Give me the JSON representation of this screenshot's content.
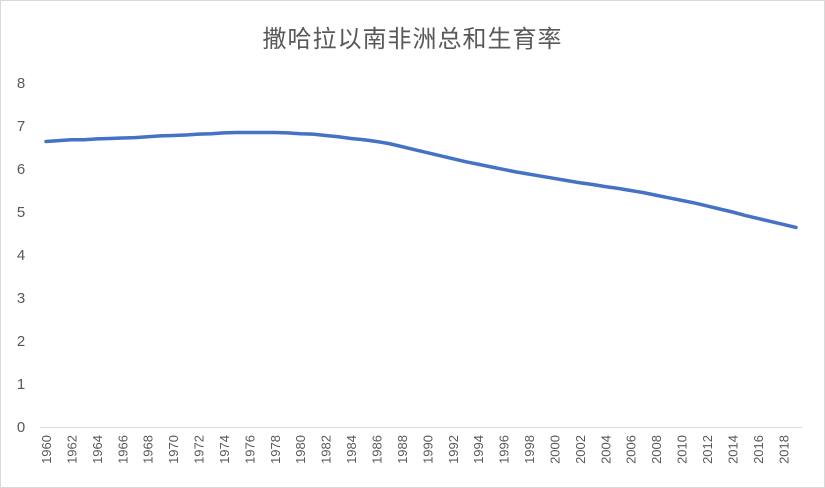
{
  "chart_data": {
    "type": "line",
    "title": "撒哈拉以南非洲总和生育率",
    "xlabel": "",
    "ylabel": "",
    "ylim": [
      0,
      8
    ],
    "yticks": [
      0,
      1,
      2,
      3,
      4,
      5,
      6,
      7,
      8
    ],
    "grid": false,
    "legend": "none",
    "line_color": "#4472C4",
    "x": [
      1960,
      1961,
      1962,
      1963,
      1964,
      1965,
      1966,
      1967,
      1968,
      1969,
      1970,
      1971,
      1972,
      1973,
      1974,
      1975,
      1976,
      1977,
      1978,
      1979,
      1980,
      1981,
      1982,
      1983,
      1984,
      1985,
      1986,
      1987,
      1988,
      1989,
      1990,
      1991,
      1992,
      1993,
      1994,
      1995,
      1996,
      1997,
      1998,
      1999,
      2000,
      2001,
      2002,
      2003,
      2004,
      2005,
      2006,
      2007,
      2008,
      2009,
      2010,
      2011,
      2012,
      2013,
      2014,
      2015,
      2016,
      2017,
      2018,
      2019
    ],
    "xtick_labels": [
      "1960",
      "1962",
      "1964",
      "1966",
      "1968",
      "1970",
      "1972",
      "1974",
      "1976",
      "1978",
      "1980",
      "1982",
      "1984",
      "1986",
      "1988",
      "1990",
      "1992",
      "1994",
      "1996",
      "1998",
      "2000",
      "2002",
      "2004",
      "2006",
      "2008",
      "2010",
      "2012",
      "2014",
      "2016",
      "2018"
    ],
    "series": [
      {
        "values": [
          6.64,
          6.66,
          6.68,
          6.68,
          6.7,
          6.71,
          6.72,
          6.73,
          6.75,
          6.77,
          6.78,
          6.79,
          6.81,
          6.82,
          6.84,
          6.85,
          6.85,
          6.85,
          6.85,
          6.84,
          6.82,
          6.81,
          6.78,
          6.75,
          6.71,
          6.68,
          6.64,
          6.59,
          6.52,
          6.45,
          6.38,
          6.31,
          6.24,
          6.17,
          6.11,
          6.05,
          5.99,
          5.93,
          5.88,
          5.83,
          5.78,
          5.73,
          5.68,
          5.64,
          5.59,
          5.55,
          5.5,
          5.45,
          5.39,
          5.33,
          5.27,
          5.21,
          5.14,
          5.07,
          5.0,
          4.92,
          4.85,
          4.78,
          4.71,
          4.64
        ]
      }
    ]
  }
}
